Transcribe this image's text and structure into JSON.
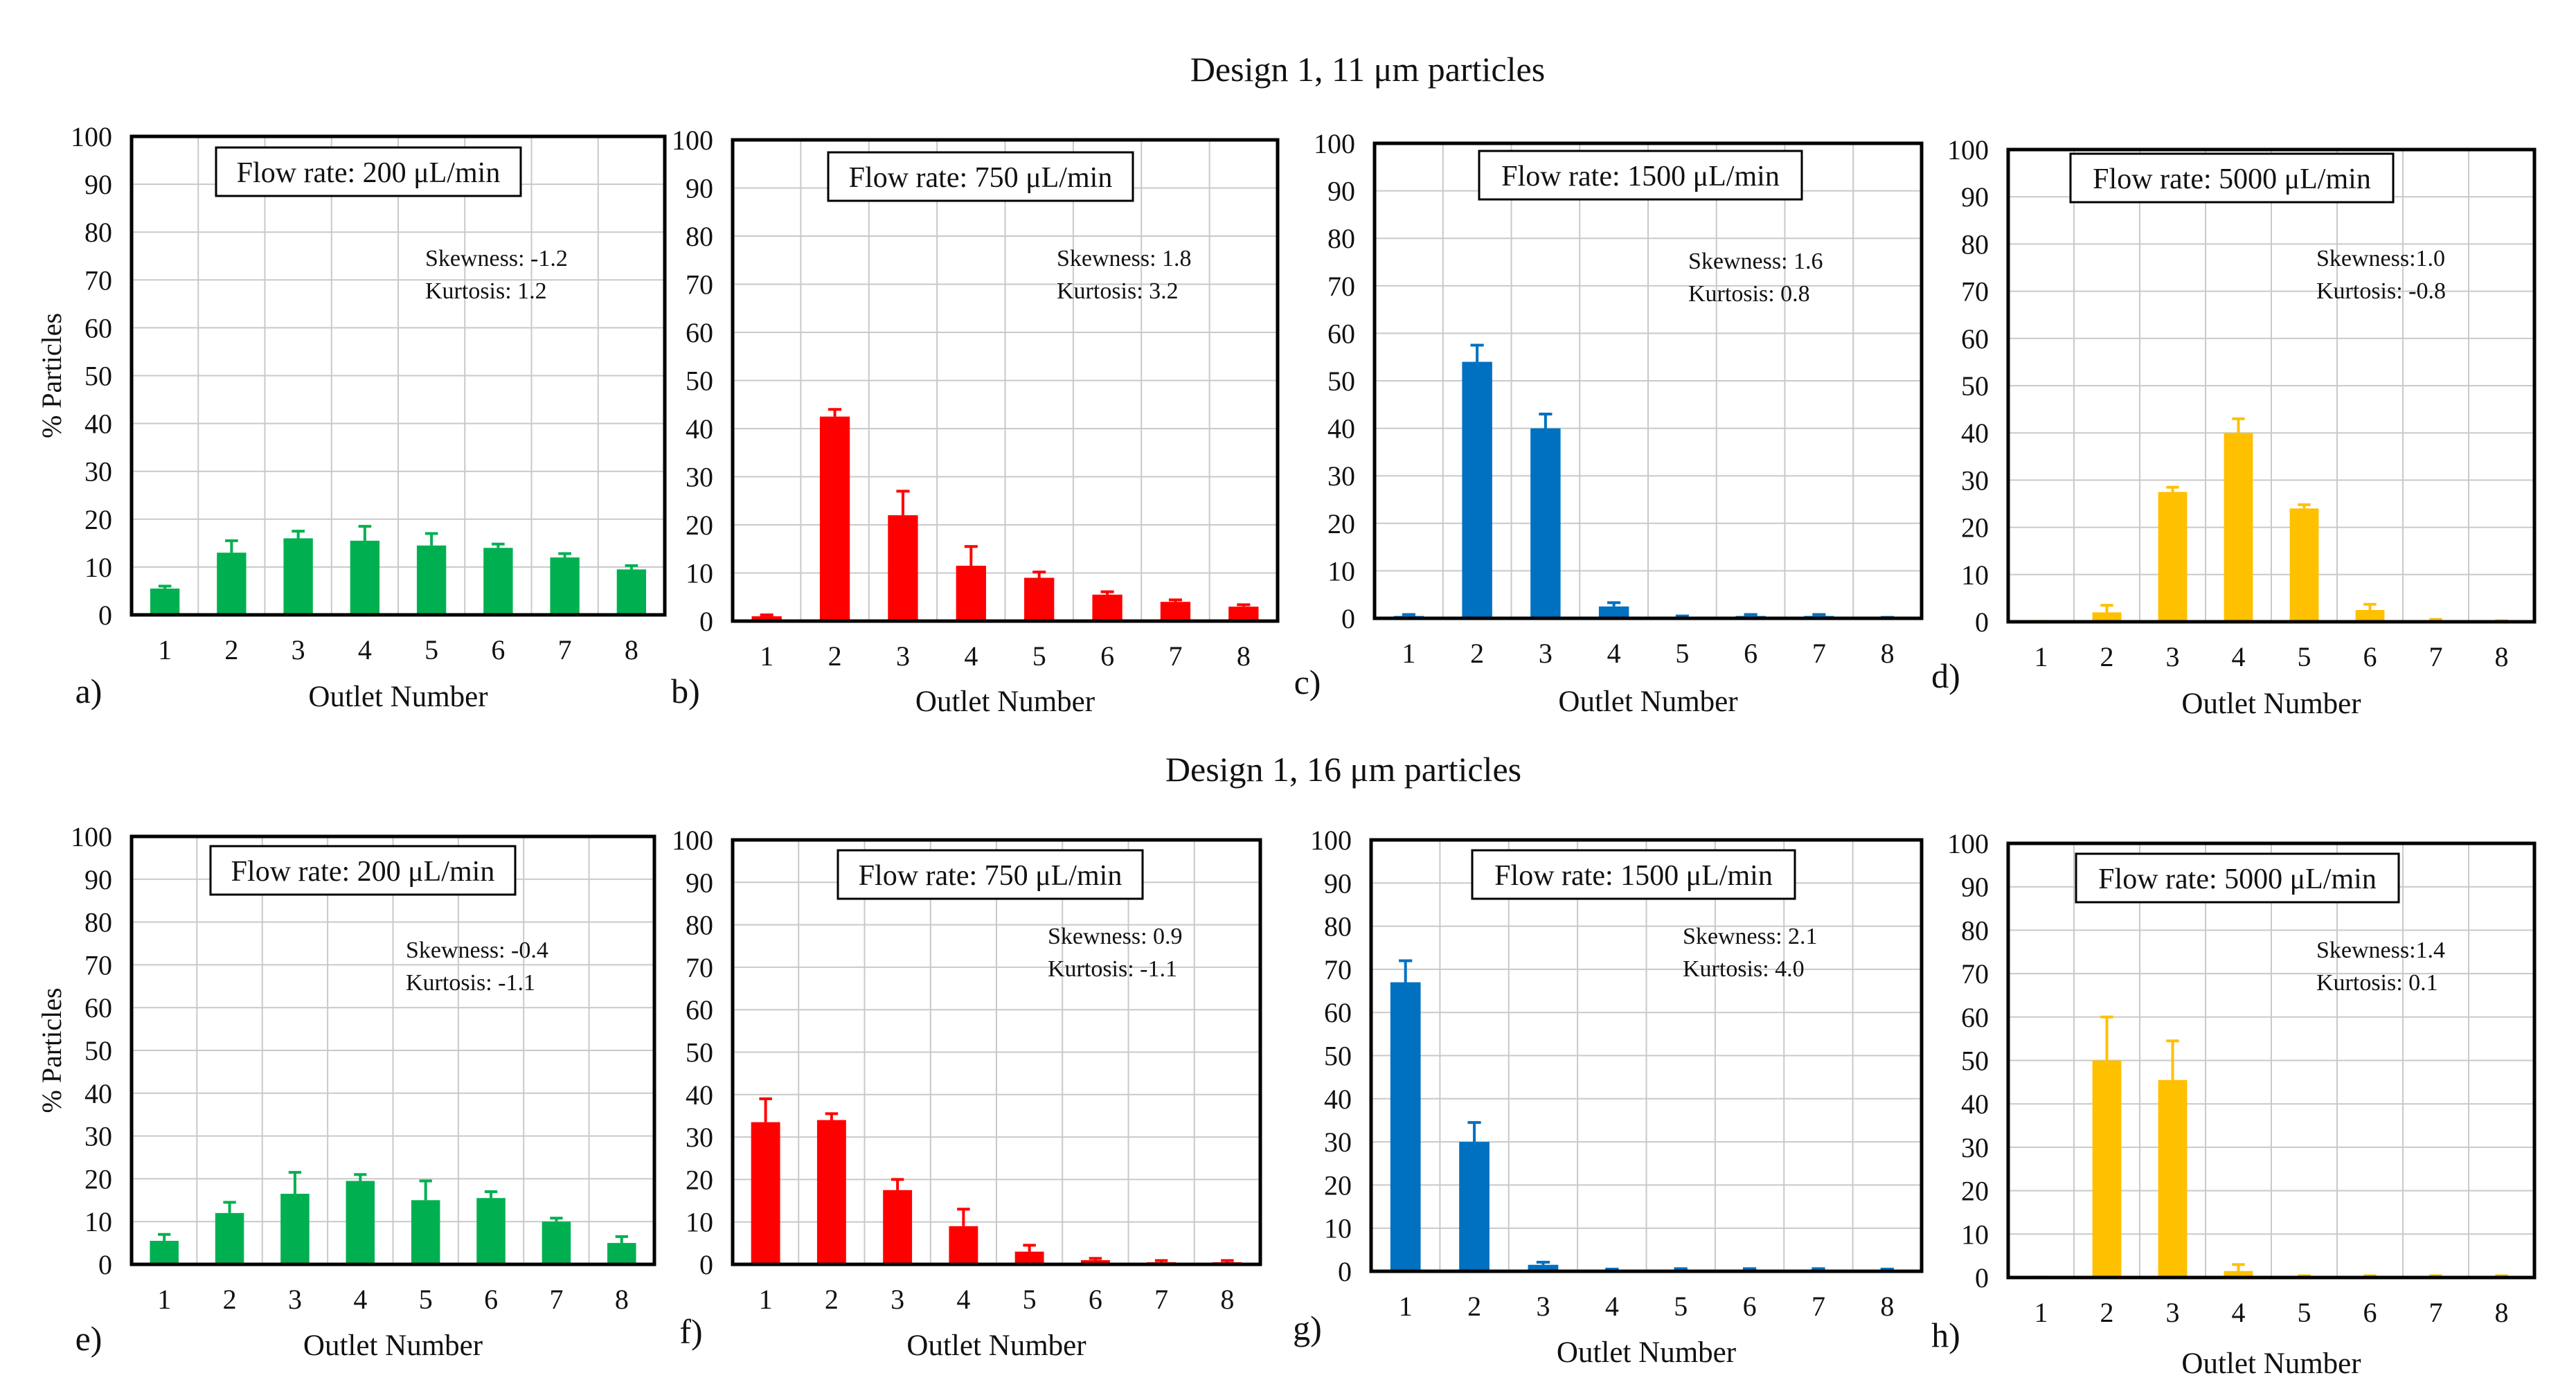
{
  "figure": {
    "rows": [
      {
        "title": "Design 1, 11 μm particles"
      },
      {
        "title": "Design 1, 16 μm particles"
      }
    ]
  },
  "chart_data": [
    {
      "type": "bar",
      "panel": "a)",
      "flow_rate": "Flow rate: 200 μL/min",
      "skewness": "Skewness: -1.2",
      "kurtosis": "Kurtosis: 1.2",
      "categories": [
        "1",
        "2",
        "3",
        "4",
        "5",
        "6",
        "7",
        "8"
      ],
      "values": [
        5.5,
        13,
        16,
        15.5,
        14.5,
        14,
        12,
        9.5
      ],
      "errors": [
        0.5,
        2.5,
        1.5,
        3,
        2.5,
        0.8,
        0.8,
        0.8
      ],
      "color": "#00b050",
      "xlabel": "Outlet Number",
      "ylabel": "% Particles",
      "ylim": [
        0,
        100
      ],
      "yticks": [
        "0",
        "10",
        "20",
        "30",
        "40",
        "50",
        "60",
        "70",
        "80",
        "90",
        "100"
      ]
    },
    {
      "type": "bar",
      "panel": "b)",
      "flow_rate": "Flow rate: 750 μL/min",
      "skewness": "Skewness: 1.8",
      "kurtosis": "Kurtosis: 3.2",
      "categories": [
        "1",
        "2",
        "3",
        "4",
        "5",
        "6",
        "7",
        "8"
      ],
      "values": [
        1,
        42.5,
        22,
        11.5,
        9,
        5.5,
        4,
        3
      ],
      "errors": [
        0.3,
        1.5,
        5,
        4,
        1.2,
        0.6,
        0.4,
        0.4
      ],
      "color": "#ff0000",
      "xlabel": "Outlet Number",
      "ylabel": "",
      "ylim": [
        0,
        100
      ],
      "yticks": [
        "0",
        "10",
        "20",
        "30",
        "40",
        "50",
        "60",
        "70",
        "80",
        "90",
        "100"
      ]
    },
    {
      "type": "bar",
      "panel": "c)",
      "flow_rate": "Flow rate: 1500 μL/min",
      "skewness": "Skewness: 1.6",
      "kurtosis": "Kurtosis: 0.8",
      "categories": [
        "1",
        "2",
        "3",
        "4",
        "5",
        "6",
        "7",
        "8"
      ],
      "values": [
        0.5,
        54,
        40,
        2.5,
        0.3,
        0.5,
        0.5,
        0.1
      ],
      "errors": [
        0.3,
        3.5,
        3,
        0.8,
        0.2,
        0.3,
        0.3,
        0.1
      ],
      "color": "#0070c0",
      "xlabel": "Outlet Number",
      "ylabel": "",
      "ylim": [
        0,
        100
      ],
      "yticks": [
        "0",
        "10",
        "20",
        "30",
        "40",
        "50",
        "60",
        "70",
        "80",
        "90",
        "100"
      ]
    },
    {
      "type": "bar",
      "panel": "d)",
      "flow_rate": "Flow rate: 5000 μL/min",
      "skewness": "Skewness:1.0",
      "kurtosis": "Kurtosis: -0.8",
      "categories": [
        "1",
        "2",
        "3",
        "4",
        "5",
        "6",
        "7",
        "8"
      ],
      "values": [
        0,
        2,
        27.5,
        40,
        24,
        2.5,
        0.3,
        0.1
      ],
      "errors": [
        0.1,
        1.5,
        1,
        3,
        0.8,
        1.2,
        0.2,
        0.1
      ],
      "color": "#ffc000",
      "xlabel": "Outlet Number",
      "ylabel": "",
      "ylim": [
        0,
        100
      ],
      "yticks": [
        "0",
        "10",
        "20",
        "30",
        "40",
        "50",
        "60",
        "70",
        "80",
        "90",
        "100"
      ]
    },
    {
      "type": "bar",
      "panel": "e)",
      "flow_rate": "Flow rate: 200 μL/min",
      "skewness": "Skewness: -0.4",
      "kurtosis": "Kurtosis: -1.1",
      "categories": [
        "1",
        "2",
        "3",
        "4",
        "5",
        "6",
        "7",
        "8"
      ],
      "values": [
        5.5,
        12,
        16.5,
        19.5,
        15,
        15.5,
        10,
        5
      ],
      "errors": [
        1.5,
        2.5,
        5,
        1.5,
        4.5,
        1.5,
        0.8,
        1.5
      ],
      "color": "#00b050",
      "xlabel": "Outlet Number",
      "ylabel": "% Particles",
      "ylim": [
        0,
        100
      ],
      "yticks": [
        "0",
        "10",
        "20",
        "30",
        "40",
        "50",
        "60",
        "70",
        "80",
        "90",
        "100"
      ]
    },
    {
      "type": "bar",
      "panel": "f)",
      "flow_rate": "Flow rate: 750 μL/min",
      "skewness": "Skewness: 0.9",
      "kurtosis": "Kurtosis: -1.1",
      "categories": [
        "1",
        "2",
        "3",
        "4",
        "5",
        "6",
        "7",
        "8"
      ],
      "values": [
        33.5,
        34,
        17.5,
        9,
        3,
        1,
        0.5,
        0.5
      ],
      "errors": [
        5.5,
        1.5,
        2.5,
        4,
        1.5,
        0.4,
        0.4,
        0.4
      ],
      "color": "#ff0000",
      "xlabel": "Outlet Number",
      "ylabel": "",
      "ylim": [
        0,
        100
      ],
      "yticks": [
        "0",
        "10",
        "20",
        "30",
        "40",
        "50",
        "60",
        "70",
        "80",
        "90",
        "100"
      ]
    },
    {
      "type": "bar",
      "panel": "g)",
      "flow_rate": "Flow rate: 1500 μL/min",
      "skewness": "Skewness: 2.1",
      "kurtosis": "Kurtosis: 4.0",
      "categories": [
        "1",
        "2",
        "3",
        "4",
        "5",
        "6",
        "7",
        "8"
      ],
      "values": [
        67,
        30,
        1.5,
        0.3,
        0.3,
        0.3,
        0.3,
        0.3
      ],
      "errors": [
        5,
        4.5,
        0.6,
        0.2,
        0.3,
        0.3,
        0.3,
        0.2
      ],
      "color": "#0070c0",
      "xlabel": "Outlet Number",
      "ylabel": "",
      "ylim": [
        0,
        100
      ],
      "yticks": [
        "0",
        "10",
        "20",
        "30",
        "40",
        "50",
        "60",
        "70",
        "80",
        "90",
        "100"
      ]
    },
    {
      "type": "bar",
      "panel": "h)",
      "flow_rate": "Flow rate: 5000 μL/min",
      "skewness": "Skewness:1.4",
      "kurtosis": "Kurtosis: 0.1",
      "categories": [
        "1",
        "2",
        "3",
        "4",
        "5",
        "6",
        "7",
        "8"
      ],
      "values": [
        0,
        50,
        45.5,
        1.5,
        0.2,
        0.2,
        0.2,
        0.2
      ],
      "errors": [
        0.1,
        10,
        9,
        1.5,
        0.2,
        0.2,
        0.2,
        0.2
      ],
      "color": "#ffc000",
      "xlabel": "Outlet Number",
      "ylabel": "",
      "ylim": [
        0,
        100
      ],
      "yticks": [
        "0",
        "10",
        "20",
        "30",
        "40",
        "50",
        "60",
        "70",
        "80",
        "90",
        "100"
      ]
    }
  ]
}
